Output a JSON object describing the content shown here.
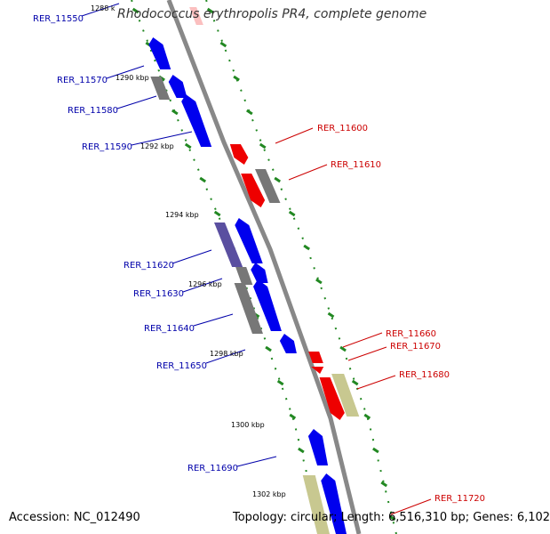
{
  "title": "Rhodococcus erythropolis PR4, complete genome",
  "footer": {
    "accession": "Accession: NC_012490",
    "summary": "Topology: circular; Length: 6,516,310 bp; Genes: 6,102"
  },
  "colors": {
    "backbone": "#888888",
    "forward_gene": "#0000ee",
    "reverse_gene": "#ee0000",
    "pseudo_gene": "#777777",
    "rna_gene": "#c8c890",
    "other_gene": "#5a4fa0",
    "tick": "#228822",
    "forward_label": "#0000aa",
    "reverse_label": "#cc0000"
  },
  "scale_labels": [
    {
      "text": "1288 k",
      "kbp": 1288
    },
    {
      "text": "1290 kbp",
      "kbp": 1290
    },
    {
      "text": "1292 kbp",
      "kbp": 1292
    },
    {
      "text": "1294 kbp",
      "kbp": 1294
    },
    {
      "text": "1296 kbp",
      "kbp": 1296
    },
    {
      "text": "1298 kbp",
      "kbp": 1298
    },
    {
      "text": "1300 kbp",
      "kbp": 1300
    },
    {
      "text": "1302 kbp",
      "kbp": 1302
    }
  ],
  "gene_labels": [
    {
      "id": "RER_11550",
      "strand": "forward"
    },
    {
      "id": "RER_11570",
      "strand": "forward"
    },
    {
      "id": "RER_11580",
      "strand": "forward"
    },
    {
      "id": "RER_11590",
      "strand": "forward"
    },
    {
      "id": "RER_11600",
      "strand": "reverse"
    },
    {
      "id": "RER_11610",
      "strand": "reverse"
    },
    {
      "id": "RER_11620",
      "strand": "forward"
    },
    {
      "id": "RER_11630",
      "strand": "forward"
    },
    {
      "id": "RER_11640",
      "strand": "forward"
    },
    {
      "id": "RER_11650",
      "strand": "forward"
    },
    {
      "id": "RER_11660",
      "strand": "reverse"
    },
    {
      "id": "RER_11670",
      "strand": "reverse"
    },
    {
      "id": "RER_11680",
      "strand": "reverse"
    },
    {
      "id": "RER_11690",
      "strand": "forward"
    },
    {
      "id": "RER_11720",
      "strand": "reverse"
    }
  ]
}
